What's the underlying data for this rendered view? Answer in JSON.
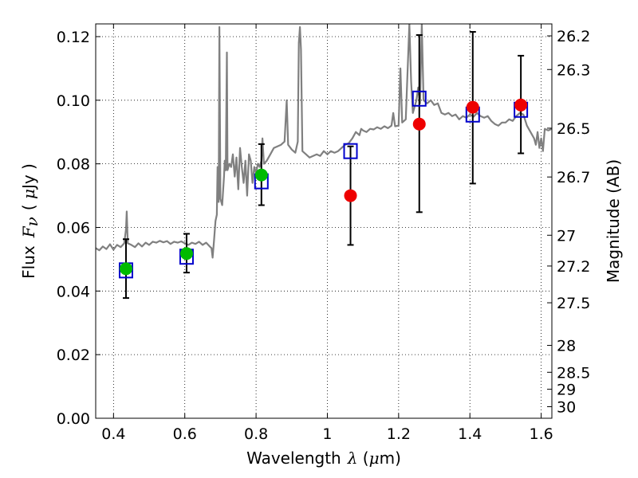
{
  "chart_data": {
    "type": "scatter",
    "xlabel": {
      "prefix": "Wavelength",
      "symbol": "λ",
      "unit_open": " (",
      "unit_mu": "μ",
      "unit_rest": "m)"
    },
    "ylabel": {
      "prefix": "Flux",
      "symbol": "F",
      "subscript": "ν",
      "unit_open": "( ",
      "unit_mu": "μ",
      "unit_rest": "Jy )"
    },
    "y2label": "Magnitude (AB)",
    "xlim": [
      0.35,
      1.63
    ],
    "ylim": [
      0.0,
      0.124
    ],
    "x_ticks": [
      0.4,
      0.6,
      0.8,
      1.0,
      1.2,
      1.4,
      1.6
    ],
    "x_tick_labels": [
      "0.4",
      "0.6",
      "0.8",
      "1",
      "1.2",
      "1.4",
      "1.6"
    ],
    "y_ticks": [
      0.0,
      0.02,
      0.04,
      0.06,
      0.08,
      0.1,
      0.12
    ],
    "y_tick_labels": [
      "0.00",
      "0.02",
      "0.04",
      "0.06",
      "0.08",
      "0.10",
      "0.12"
    ],
    "y2_ticks": [
      26.2,
      26.3,
      26.5,
      26.7,
      27,
      27.2,
      27.5,
      28,
      28.5,
      29,
      30
    ],
    "y2_tick_labels": [
      "26.2",
      "26.3",
      "26.5",
      "26.7",
      "27",
      "27.2",
      "27.5",
      "28",
      "28.5",
      "29",
      "30"
    ],
    "grid": true,
    "colors": {
      "spectrum": "#808080",
      "model_box": "#0000cc",
      "observed_green": "#00bb00",
      "observed_red": "#ee0000",
      "errorbar": "#000000"
    },
    "series": [
      {
        "marker": "line",
        "points": [
          [
            0.35,
            0.0535
          ],
          [
            0.36,
            0.0528
          ],
          [
            0.37,
            0.054
          ],
          [
            0.38,
            0.0532
          ],
          [
            0.39,
            0.0547
          ],
          [
            0.4,
            0.053
          ],
          [
            0.41,
            0.0545
          ],
          [
            0.42,
            0.0538
          ],
          [
            0.43,
            0.055
          ],
          [
            0.435,
            0.0595
          ],
          [
            0.437,
            0.065
          ],
          [
            0.44,
            0.055
          ],
          [
            0.45,
            0.0545
          ],
          [
            0.46,
            0.0538
          ],
          [
            0.47,
            0.055
          ],
          [
            0.48,
            0.054
          ],
          [
            0.49,
            0.0552
          ],
          [
            0.5,
            0.0545
          ],
          [
            0.51,
            0.0555
          ],
          [
            0.52,
            0.0552
          ],
          [
            0.53,
            0.0558
          ],
          [
            0.54,
            0.0553
          ],
          [
            0.55,
            0.0557
          ],
          [
            0.56,
            0.0548
          ],
          [
            0.57,
            0.0555
          ],
          [
            0.58,
            0.0552
          ],
          [
            0.59,
            0.0556
          ],
          [
            0.6,
            0.055
          ],
          [
            0.61,
            0.0545
          ],
          [
            0.62,
            0.0552
          ],
          [
            0.63,
            0.0548
          ],
          [
            0.64,
            0.0555
          ],
          [
            0.65,
            0.0545
          ],
          [
            0.66,
            0.0552
          ],
          [
            0.67,
            0.054
          ],
          [
            0.675,
            0.0535
          ],
          [
            0.678,
            0.0505
          ],
          [
            0.682,
            0.056
          ],
          [
            0.686,
            0.062
          ],
          [
            0.69,
            0.064
          ],
          [
            0.692,
            0.079
          ],
          [
            0.695,
            0.068
          ],
          [
            0.697,
            0.123
          ],
          [
            0.7,
            0.069
          ],
          [
            0.705,
            0.067
          ],
          [
            0.71,
            0.076
          ],
          [
            0.712,
            0.081
          ],
          [
            0.715,
            0.078
          ],
          [
            0.718,
            0.115
          ],
          [
            0.72,
            0.078
          ],
          [
            0.725,
            0.08
          ],
          [
            0.73,
            0.079
          ],
          [
            0.735,
            0.083
          ],
          [
            0.74,
            0.076
          ],
          [
            0.745,
            0.082
          ],
          [
            0.75,
            0.072
          ],
          [
            0.755,
            0.085
          ],
          [
            0.76,
            0.079
          ],
          [
            0.765,
            0.074
          ],
          [
            0.77,
            0.081
          ],
          [
            0.775,
            0.07
          ],
          [
            0.78,
            0.083
          ],
          [
            0.785,
            0.081
          ],
          [
            0.79,
            0.074
          ],
          [
            0.795,
            0.079
          ],
          [
            0.8,
            0.077
          ],
          [
            0.805,
            0.08
          ],
          [
            0.81,
            0.079
          ],
          [
            0.815,
            0.081
          ],
          [
            0.818,
            0.088
          ],
          [
            0.822,
            0.08
          ],
          [
            0.83,
            0.081
          ],
          [
            0.84,
            0.083
          ],
          [
            0.85,
            0.085
          ],
          [
            0.86,
            0.0855
          ],
          [
            0.87,
            0.086
          ],
          [
            0.88,
            0.087
          ],
          [
            0.886,
            0.1
          ],
          [
            0.89,
            0.086
          ],
          [
            0.9,
            0.0845
          ],
          [
            0.91,
            0.0835
          ],
          [
            0.917,
            0.087
          ],
          [
            0.92,
            0.118
          ],
          [
            0.923,
            0.123
          ],
          [
            0.926,
            0.116
          ],
          [
            0.93,
            0.084
          ],
          [
            0.94,
            0.083
          ],
          [
            0.95,
            0.082
          ],
          [
            0.96,
            0.0825
          ],
          [
            0.97,
            0.083
          ],
          [
            0.98,
            0.0825
          ],
          [
            0.99,
            0.084
          ],
          [
            1.0,
            0.083
          ],
          [
            1.01,
            0.084
          ],
          [
            1.02,
            0.0835
          ],
          [
            1.03,
            0.084
          ],
          [
            1.04,
            0.085
          ],
          [
            1.05,
            0.086
          ],
          [
            1.06,
            0.0865
          ],
          [
            1.07,
            0.088
          ],
          [
            1.08,
            0.09
          ],
          [
            1.09,
            0.089
          ],
          [
            1.095,
            0.091
          ],
          [
            1.1,
            0.0905
          ],
          [
            1.11,
            0.09
          ],
          [
            1.12,
            0.091
          ],
          [
            1.13,
            0.0908
          ],
          [
            1.14,
            0.0915
          ],
          [
            1.15,
            0.091
          ],
          [
            1.16,
            0.0918
          ],
          [
            1.17,
            0.0912
          ],
          [
            1.18,
            0.092
          ],
          [
            1.185,
            0.096
          ],
          [
            1.19,
            0.0918
          ],
          [
            1.2,
            0.092
          ],
          [
            1.205,
            0.11
          ],
          [
            1.21,
            0.093
          ],
          [
            1.22,
            0.094
          ],
          [
            1.23,
            0.124
          ],
          [
            1.235,
            0.106
          ],
          [
            1.24,
            0.096
          ],
          [
            1.25,
            0.1
          ],
          [
            1.255,
            0.104
          ],
          [
            1.26,
            0.099
          ],
          [
            1.265,
            0.124
          ],
          [
            1.27,
            0.1
          ],
          [
            1.28,
            0.099
          ],
          [
            1.29,
            0.1
          ],
          [
            1.3,
            0.0985
          ],
          [
            1.31,
            0.099
          ],
          [
            1.32,
            0.096
          ],
          [
            1.33,
            0.0955
          ],
          [
            1.34,
            0.096
          ],
          [
            1.35,
            0.095
          ],
          [
            1.36,
            0.0955
          ],
          [
            1.37,
            0.094
          ],
          [
            1.38,
            0.095
          ],
          [
            1.39,
            0.0945
          ],
          [
            1.4,
            0.0955
          ],
          [
            1.41,
            0.0948
          ],
          [
            1.42,
            0.096
          ],
          [
            1.43,
            0.095
          ],
          [
            1.44,
            0.0945
          ],
          [
            1.45,
            0.095
          ],
          [
            1.46,
            0.0935
          ],
          [
            1.47,
            0.0925
          ],
          [
            1.48,
            0.092
          ],
          [
            1.49,
            0.093
          ],
          [
            1.5,
            0.093
          ],
          [
            1.51,
            0.094
          ],
          [
            1.52,
            0.0935
          ],
          [
            1.53,
            0.095
          ],
          [
            1.54,
            0.096
          ],
          [
            1.55,
            0.0955
          ],
          [
            1.56,
            0.092
          ],
          [
            1.57,
            0.09
          ],
          [
            1.58,
            0.088
          ],
          [
            1.585,
            0.086
          ],
          [
            1.59,
            0.09
          ],
          [
            1.595,
            0.085
          ],
          [
            1.6,
            0.088
          ],
          [
            1.605,
            0.084
          ],
          [
            1.61,
            0.091
          ],
          [
            1.62,
            0.0905
          ],
          [
            1.63,
            0.091
          ]
        ]
      },
      {
        "marker": "open-square",
        "points": [
          [
            0.435,
            0.0465
          ],
          [
            0.605,
            0.0508
          ],
          [
            0.815,
            0.0745
          ],
          [
            1.065,
            0.084
          ],
          [
            1.258,
            0.1005
          ],
          [
            1.408,
            0.0955
          ],
          [
            1.543,
            0.097
          ]
        ]
      },
      {
        "marker": "filled-circle-green",
        "points": [
          [
            0.435,
            0.047
          ],
          [
            0.605,
            0.0518
          ],
          [
            0.815,
            0.0765
          ]
        ]
      },
      {
        "marker": "filled-circle-red",
        "points": [
          [
            1.065,
            0.07
          ],
          [
            1.258,
            0.0925
          ],
          [
            1.408,
            0.0978
          ],
          [
            1.543,
            0.0985
          ]
        ]
      },
      {
        "marker": "errorbar",
        "points": [
          [
            0.435,
            0.0378,
            0.0563
          ],
          [
            0.605,
            0.0458,
            0.058
          ],
          [
            0.815,
            0.067,
            0.0862
          ],
          [
            1.065,
            0.0545,
            0.0855
          ],
          [
            1.258,
            0.0648,
            0.1205
          ],
          [
            1.408,
            0.0738,
            0.1215
          ],
          [
            1.543,
            0.0833,
            0.114
          ]
        ]
      }
    ]
  }
}
